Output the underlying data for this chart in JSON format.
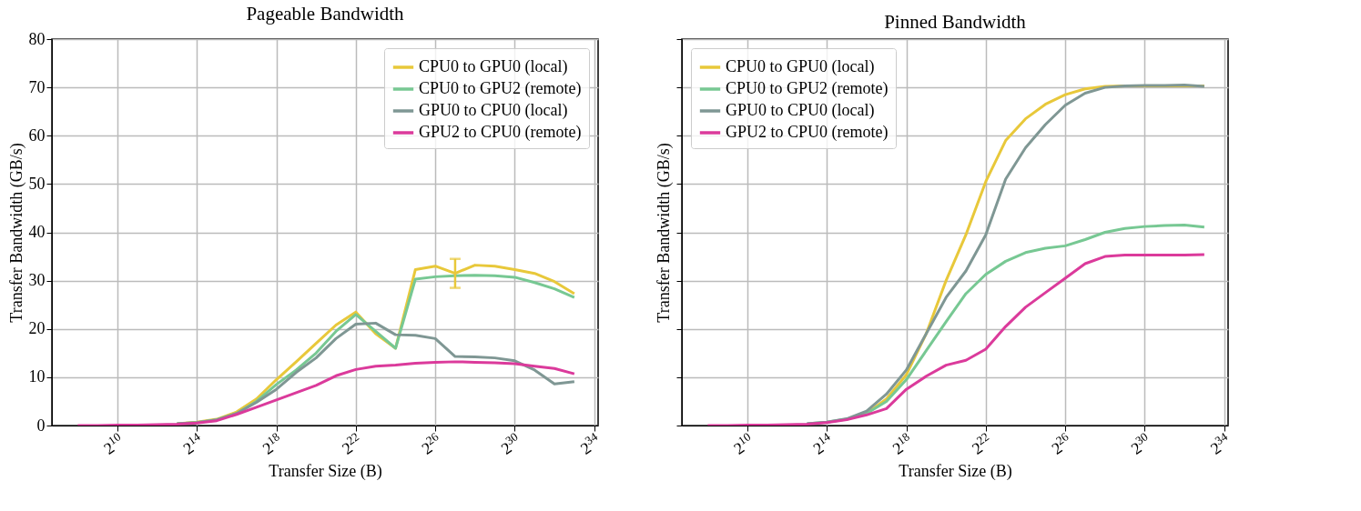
{
  "chart_data": [
    {
      "type": "line",
      "title": "Pageable Bandwidth",
      "xlabel": "Transfer Size (B)",
      "ylabel": "Transfer Bandwidth (GB/s)",
      "log": "x",
      "grid": true,
      "legend": "top right",
      "x": [
        256,
        512,
        1024,
        2048,
        4096,
        8192,
        16384,
        32768,
        65536,
        131072,
        262144,
        524288,
        1048576,
        2097152,
        4194304,
        8388608,
        16777216,
        33554432,
        67108864,
        134217728,
        268435456,
        536870912,
        1073741824,
        2147483648,
        4294967296,
        8589934592
      ],
      "xlim": [
        104,
        19700000000
      ],
      "xticks": [
        {
          "value": 1024,
          "label": "2$^{10}$"
        },
        {
          "value": 16384,
          "label": "2$^{14}$"
        },
        {
          "value": 262144,
          "label": "2$^{18}$"
        },
        {
          "value": 4194304,
          "label": "2$^{22}$"
        },
        {
          "value": 67108864,
          "label": "2$^{26}$"
        },
        {
          "value": 1073741824,
          "label": "2$^{30}$"
        },
        {
          "value": 17179869184,
          "label": "2$^{34}$"
        }
      ],
      "ylim": [
        0,
        80
      ],
      "yticks": [
        0,
        10,
        20,
        30,
        40,
        50,
        60,
        70,
        80
      ],
      "series": [
        {
          "name": "CPU0 to GPU0 (local)",
          "color": "#e8c83a",
          "values": [
            null,
            null,
            null,
            null,
            null,
            0.4,
            0.7,
            1.3,
            2.8,
            5.5,
            9.5,
            13.2,
            17,
            20.8,
            23.5,
            19,
            16,
            32.3,
            33,
            31.5,
            33.2,
            33,
            32.3,
            31.5,
            29.8,
            27.3
          ],
          "errors": [
            null,
            null,
            null,
            null,
            null,
            null,
            null,
            null,
            null,
            null,
            null,
            null,
            null,
            null,
            null,
            null,
            null,
            null,
            null,
            [
              28.5,
              34.5
            ],
            null,
            null,
            null,
            null,
            null,
            null
          ]
        },
        {
          "name": "CPU0 to GPU2 (remote)",
          "color": "#77c893",
          "values": [
            null,
            null,
            null,
            null,
            null,
            0.4,
            0.6,
            1.2,
            2.5,
            5,
            8.5,
            11.5,
            15,
            19.5,
            23,
            19.5,
            16,
            30.3,
            30.8,
            31,
            31.1,
            31,
            30.7,
            29.6,
            28.3,
            26.5
          ]
        },
        {
          "name": "GPU0 to CPU0 (local)",
          "color": "#7f9794",
          "values": [
            null,
            null,
            null,
            null,
            null,
            0.4,
            0.6,
            1.2,
            2.5,
            4.8,
            7.5,
            11,
            14,
            18,
            21,
            21.2,
            18.8,
            18.7,
            18,
            14.3,
            14.2,
            14,
            13.4,
            11.5,
            8.6,
            9.1
          ]
        },
        {
          "name": "GPU2 to CPU0 (remote)",
          "color": "#db3a9b",
          "values": [
            0,
            0,
            0.1,
            0.1,
            0.2,
            0.3,
            0.5,
            1,
            2.3,
            3.8,
            5.3,
            6.8,
            8.3,
            10.3,
            11.6,
            12.3,
            12.5,
            12.9,
            13.1,
            13.2,
            13.1,
            13,
            12.8,
            12.3,
            11.8,
            10.7
          ]
        }
      ]
    },
    {
      "type": "line",
      "title": "Pinned Bandwidth",
      "xlabel": "Transfer Size (B)",
      "ylabel": "Transfer Bandwidth (GB/s)",
      "log": "x",
      "grid": true,
      "legend": "top left",
      "tick_labels": "x",
      "x": [
        256,
        512,
        1024,
        2048,
        4096,
        8192,
        16384,
        32768,
        65536,
        131072,
        262144,
        524288,
        1048576,
        2097152,
        4194304,
        8388608,
        16777216,
        33554432,
        67108864,
        134217728,
        268435456,
        536870912,
        1073741824,
        2147483648,
        4294967296,
        8589934592
      ],
      "xlim": [
        104,
        19700000000
      ],
      "xticks": [
        {
          "value": 1024,
          "label": "2$^{10}$"
        },
        {
          "value": 16384,
          "label": "2$^{14}$"
        },
        {
          "value": 262144,
          "label": "2$^{18}$"
        },
        {
          "value": 4194304,
          "label": "2$^{22}$"
        },
        {
          "value": 67108864,
          "label": "2$^{26}$"
        },
        {
          "value": 1073741824,
          "label": "2$^{30}$"
        },
        {
          "value": 17179869184,
          "label": "2$^{34}$"
        }
      ],
      "ylim": [
        0,
        80
      ],
      "yticks": [
        0,
        10,
        20,
        30,
        40,
        50,
        60,
        70,
        80
      ],
      "series": [
        {
          "name": "CPU0 to GPU0 (local)",
          "color": "#e8c83a",
          "values": [
            null,
            null,
            null,
            null,
            null,
            null,
            null,
            1.3,
            2.5,
            5.5,
            10.5,
            19,
            30,
            39.5,
            50.5,
            59,
            63.5,
            66.5,
            68.5,
            69.7,
            70.2,
            70.3,
            70.3,
            70.3,
            70.3,
            70.3
          ]
        },
        {
          "name": "CPU0 to GPU2 (remote)",
          "color": "#77c893",
          "values": [
            null,
            null,
            null,
            null,
            null,
            0.4,
            0.7,
            1.3,
            2.5,
            5,
            9.5,
            15.5,
            21.5,
            27.3,
            31.3,
            34,
            35.8,
            36.7,
            37.2,
            38.5,
            40,
            40.8,
            41.2,
            41.4,
            41.5,
            41.1
          ]
        },
        {
          "name": "GPU0 to CPU0 (local)",
          "color": "#7f9794",
          "values": [
            null,
            null,
            null,
            null,
            null,
            0.4,
            0.7,
            1.4,
            3,
            6.5,
            11.5,
            19,
            26.5,
            32,
            39.5,
            51,
            57.5,
            62.3,
            66.3,
            68.8,
            70,
            70.3,
            70.4,
            70.4,
            70.5,
            70.2
          ]
        },
        {
          "name": "GPU2 to CPU0 (remote)",
          "color": "#db3a9b",
          "values": [
            0,
            0,
            0.1,
            0.1,
            0.2,
            0.3,
            0.6,
            1.2,
            2.2,
            3.5,
            7.5,
            10.2,
            12.5,
            13.5,
            15.8,
            20.5,
            24.5,
            27.5,
            30.5,
            33.5,
            35,
            35.3,
            35.3,
            35.3,
            35.3,
            35.4
          ]
        }
      ]
    }
  ]
}
